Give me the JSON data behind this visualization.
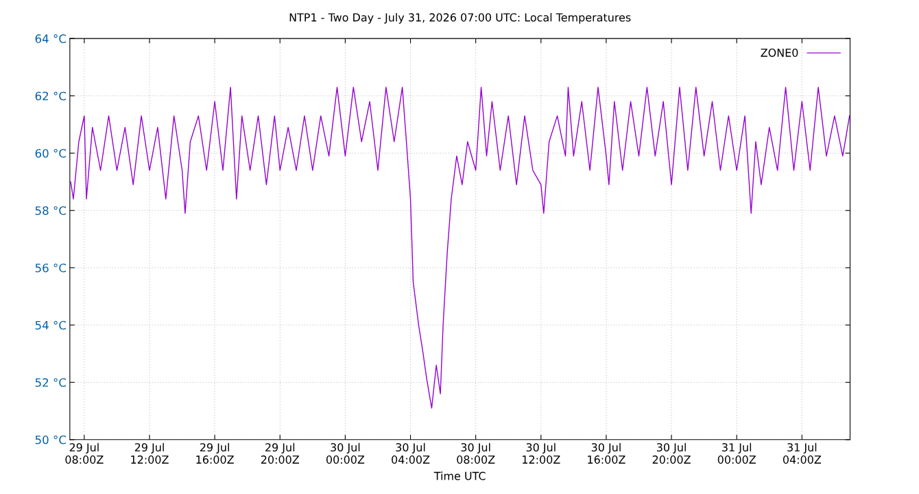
{
  "chart_data": {
    "type": "line",
    "title": "NTP1 - Two Day - July 31, 2026 07:00 UTC: Local Temperatures",
    "xlabel": "Time UTC",
    "xlim": [
      "2026-07-29T07:07",
      "2026-07-31T06:57"
    ],
    "xticks": [
      {
        "value": "2026-07-29T08:00",
        "label": "29 Jul\n08:00Z"
      },
      {
        "value": "2026-07-29T12:00",
        "label": "29 Jul\n12:00Z"
      },
      {
        "value": "2026-07-29T16:00",
        "label": "29 Jul\n16:00Z"
      },
      {
        "value": "2026-07-29T20:00",
        "label": "29 Jul\n20:00Z"
      },
      {
        "value": "2026-07-30T00:00",
        "label": "30 Jul\n00:00Z"
      },
      {
        "value": "2026-07-30T04:00",
        "label": "30 Jul\n04:00Z"
      },
      {
        "value": "2026-07-30T08:00",
        "label": "30 Jul\n08:00Z"
      },
      {
        "value": "2026-07-30T12:00",
        "label": "30 Jul\n12:00Z"
      },
      {
        "value": "2026-07-30T16:00",
        "label": "30 Jul\n16:00Z"
      },
      {
        "value": "2026-07-30T20:00",
        "label": "30 Jul\n20:00Z"
      },
      {
        "value": "2026-07-31T00:00",
        "label": "31 Jul\n00:00Z"
      },
      {
        "value": "2026-07-31T04:00",
        "label": "31 Jul\n04:00Z"
      }
    ],
    "ylim": [
      50,
      64
    ],
    "yticks": [
      {
        "value": 50,
        "label": "50 °C"
      },
      {
        "value": 52,
        "label": "52 °C"
      },
      {
        "value": 54,
        "label": "54 °C"
      },
      {
        "value": 56,
        "label": "56 °C"
      },
      {
        "value": 58,
        "label": "58 °C"
      },
      {
        "value": 60,
        "label": "60 °C"
      },
      {
        "value": 62,
        "label": "62 °C"
      },
      {
        "value": 64,
        "label": "64 °C"
      }
    ],
    "grid": true,
    "legend": "top right",
    "line_style": "solid",
    "marker": "none",
    "x": [
      "2026-07-29T07:10",
      "2026-07-29T07:20",
      "2026-07-29T07:40",
      "2026-07-29T08:00",
      "2026-07-29T08:08",
      "2026-07-29T08:30",
      "2026-07-29T09:00",
      "2026-07-29T09:30",
      "2026-07-29T10:00",
      "2026-07-29T10:30",
      "2026-07-29T11:00",
      "2026-07-29T11:30",
      "2026-07-29T12:00",
      "2026-07-29T12:30",
      "2026-07-29T13:00",
      "2026-07-29T13:30",
      "2026-07-29T14:00",
      "2026-07-29T14:11",
      "2026-07-29T14:30",
      "2026-07-29T15:00",
      "2026-07-29T15:30",
      "2026-07-29T16:00",
      "2026-07-29T16:30",
      "2026-07-29T16:58",
      "2026-07-29T17:20",
      "2026-07-29T17:40",
      "2026-07-29T18:10",
      "2026-07-29T18:40",
      "2026-07-29T19:10",
      "2026-07-29T19:40",
      "2026-07-29T20:00",
      "2026-07-29T20:30",
      "2026-07-29T21:00",
      "2026-07-29T21:30",
      "2026-07-29T22:00",
      "2026-07-29T22:30",
      "2026-07-29T23:00",
      "2026-07-29T23:30",
      "2026-07-30T00:00",
      "2026-07-30T00:30",
      "2026-07-30T01:00",
      "2026-07-30T01:30",
      "2026-07-30T02:00",
      "2026-07-30T02:30",
      "2026-07-30T03:00",
      "2026-07-30T03:30",
      "2026-07-30T03:45",
      "2026-07-30T04:00",
      "2026-07-30T04:10",
      "2026-07-30T04:30",
      "2026-07-30T04:45",
      "2026-07-30T05:00",
      "2026-07-30T05:18",
      "2026-07-30T05:35",
      "2026-07-30T05:50",
      "2026-07-30T06:00",
      "2026-07-30T06:15",
      "2026-07-30T06:30",
      "2026-07-30T06:50",
      "2026-07-30T07:10",
      "2026-07-30T07:30",
      "2026-07-30T08:00",
      "2026-07-30T08:20",
      "2026-07-30T08:40",
      "2026-07-30T09:00",
      "2026-07-30T09:30",
      "2026-07-30T10:00",
      "2026-07-30T10:30",
      "2026-07-30T11:00",
      "2026-07-30T11:30",
      "2026-07-30T12:00",
      "2026-07-30T12:10",
      "2026-07-30T12:30",
      "2026-07-30T13:00",
      "2026-07-30T13:30",
      "2026-07-30T13:40",
      "2026-07-30T14:00",
      "2026-07-30T14:30",
      "2026-07-30T15:00",
      "2026-07-30T15:30",
      "2026-07-30T16:00",
      "2026-07-30T16:10",
      "2026-07-30T16:30",
      "2026-07-30T17:00",
      "2026-07-30T17:30",
      "2026-07-30T18:00",
      "2026-07-30T18:30",
      "2026-07-30T19:00",
      "2026-07-30T19:30",
      "2026-07-30T20:00",
      "2026-07-30T20:30",
      "2026-07-30T21:00",
      "2026-07-30T21:30",
      "2026-07-30T22:00",
      "2026-07-30T22:30",
      "2026-07-30T23:00",
      "2026-07-30T23:30",
      "2026-07-31T00:00",
      "2026-07-31T00:30",
      "2026-07-31T00:53",
      "2026-07-31T01:10",
      "2026-07-31T01:30",
      "2026-07-31T02:00",
      "2026-07-31T02:30",
      "2026-07-31T03:00",
      "2026-07-31T03:30",
      "2026-07-31T04:00",
      "2026-07-31T04:30",
      "2026-07-31T05:00",
      "2026-07-31T05:30",
      "2026-07-31T06:00",
      "2026-07-31T06:30",
      "2026-07-31T06:55"
    ],
    "series": [
      {
        "name": "ZONE0",
        "color": "#9400d3",
        "values": [
          59.0,
          58.4,
          60.4,
          61.3,
          58.4,
          60.9,
          59.4,
          61.3,
          59.4,
          60.9,
          58.9,
          61.3,
          59.4,
          60.9,
          58.4,
          61.3,
          59.4,
          57.9,
          60.4,
          61.3,
          59.4,
          61.8,
          59.4,
          62.3,
          58.4,
          61.3,
          59.4,
          61.3,
          58.9,
          61.3,
          59.4,
          60.9,
          59.4,
          61.3,
          59.4,
          61.3,
          59.9,
          62.3,
          59.9,
          62.3,
          60.4,
          61.8,
          59.4,
          62.3,
          60.4,
          62.3,
          60.4,
          58.4,
          55.5,
          54.0,
          53.1,
          52.1,
          51.1,
          52.6,
          51.6,
          54.0,
          56.5,
          58.4,
          59.9,
          58.9,
          60.4,
          59.4,
          62.3,
          59.9,
          61.8,
          59.4,
          61.3,
          58.9,
          61.3,
          59.4,
          58.9,
          57.9,
          60.4,
          61.3,
          59.9,
          62.3,
          59.9,
          61.8,
          59.4,
          62.3,
          59.9,
          58.9,
          61.8,
          59.4,
          61.8,
          59.9,
          62.3,
          59.9,
          61.8,
          58.9,
          62.3,
          59.4,
          62.3,
          59.9,
          61.8,
          59.4,
          61.3,
          59.4,
          61.3,
          57.9,
          60.4,
          58.9,
          60.9,
          59.4,
          62.3,
          59.4,
          61.8,
          59.4,
          62.3,
          59.9,
          61.3,
          59.9,
          61.3
        ]
      }
    ]
  }
}
